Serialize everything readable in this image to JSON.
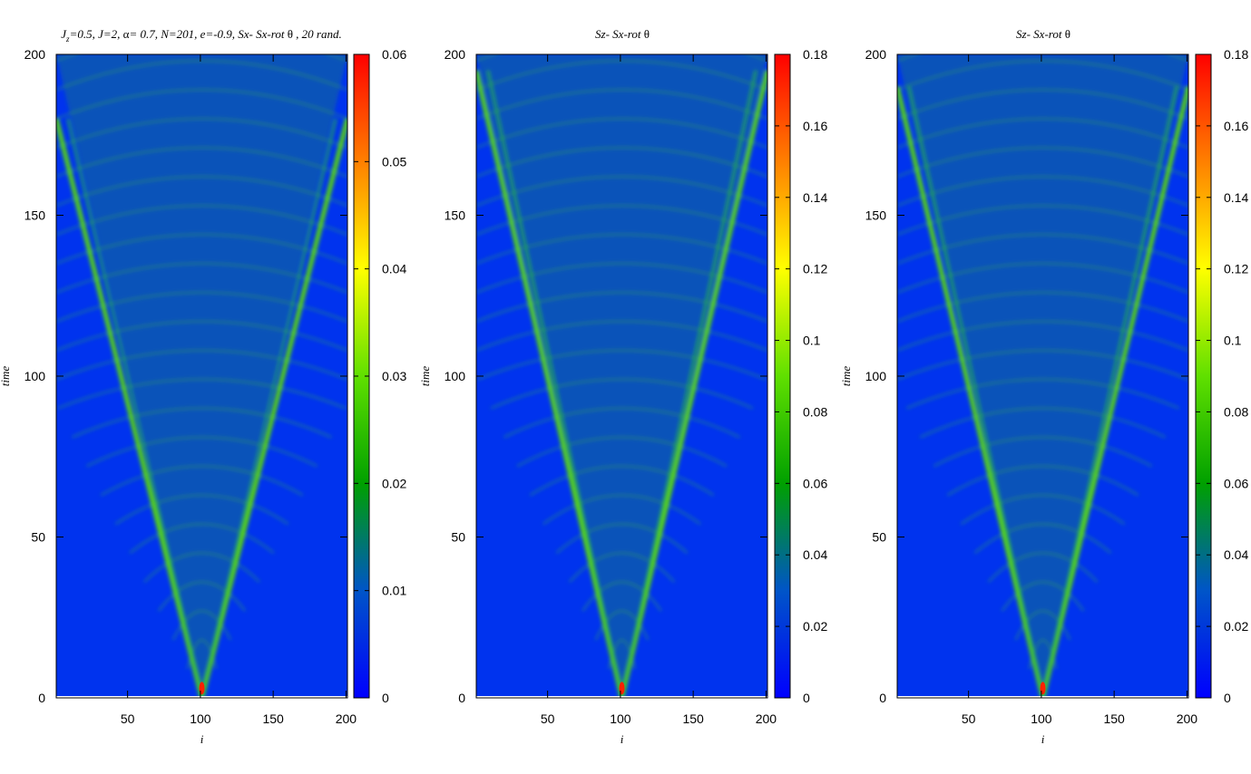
{
  "chart_data": [
    {
      "type": "heatmap",
      "title": {
        "parts": [
          {
            "t": "J",
            "up": false
          },
          {
            "t": "z",
            "sub": true
          },
          {
            "t": "=0.5,  J=2, ",
            "up": false
          },
          {
            "t": "α",
            "up": true
          },
          {
            "t": "= 0.7,   N=201,  e=-0.9, Sx- Sx-rot ",
            "up": false
          },
          {
            "t": "θ",
            "up": true
          },
          {
            "t": " , 20 rand.",
            "up": false
          }
        ]
      },
      "xlabel": "i",
      "ylabel": "time",
      "x_ticks": [
        "50",
        "100",
        "150",
        "200"
      ],
      "x_tick_values": [
        50,
        100,
        150,
        200
      ],
      "xlim": [
        1,
        201
      ],
      "y_ticks": [
        "0",
        "50",
        "100",
        "150",
        "200"
      ],
      "y_tick_values": [
        0,
        50,
        100,
        150,
        200
      ],
      "ylim": [
        0,
        200
      ],
      "colorbar": {
        "min": 0,
        "max": 0.06,
        "ticks": [
          "0",
          "0.01",
          "0.02",
          "0.03",
          "0.04",
          "0.05",
          "0.06"
        ],
        "tick_values": [
          0,
          0.01,
          0.02,
          0.03,
          0.04,
          0.05,
          0.06
        ]
      },
      "data_description_values": {
        "center_site": 101,
        "front_velocity": 0.55,
        "front_reaches_edge_at_time": 180,
        "peak_value": 0.06
      }
    },
    {
      "type": "heatmap",
      "title": {
        "parts": [
          {
            "t": "Sz- Sx-rot ",
            "up": false
          },
          {
            "t": "θ",
            "up": true
          }
        ]
      },
      "xlabel": "i",
      "ylabel": "time",
      "x_ticks": [
        "50",
        "100",
        "150",
        "200"
      ],
      "x_tick_values": [
        50,
        100,
        150,
        200
      ],
      "xlim": [
        1,
        201
      ],
      "y_ticks": [
        "0",
        "50",
        "100",
        "150",
        "200"
      ],
      "y_tick_values": [
        0,
        50,
        100,
        150,
        200
      ],
      "ylim": [
        0,
        200
      ],
      "colorbar": {
        "min": 0,
        "max": 0.18,
        "ticks": [
          "0",
          "0.02",
          "0.04",
          "0.06",
          "0.08",
          "0.1",
          "0.12",
          "0.14",
          "0.16",
          "0.18"
        ],
        "tick_values": [
          0,
          0.02,
          0.04,
          0.06,
          0.08,
          0.1,
          0.12,
          0.14,
          0.16,
          0.18
        ]
      },
      "data_description_values": {
        "center_site": 101,
        "front_velocity": 0.5,
        "front_reaches_edge_at_time": 195,
        "peak_value": 0.18
      }
    },
    {
      "type": "heatmap",
      "title": {
        "parts": [
          {
            "t": "Sz- Sx-rot ",
            "up": false
          },
          {
            "t": "θ",
            "up": true
          }
        ]
      },
      "xlabel": "i",
      "ylabel": "time",
      "x_ticks": [
        "50",
        "100",
        "150",
        "200"
      ],
      "x_tick_values": [
        50,
        100,
        150,
        200
      ],
      "xlim": [
        1,
        201
      ],
      "y_ticks": [
        "0",
        "50",
        "100",
        "150",
        "200"
      ],
      "y_tick_values": [
        0,
        50,
        100,
        150,
        200
      ],
      "ylim": [
        0,
        200
      ],
      "colorbar": {
        "min": 0,
        "max": 0.18,
        "ticks": [
          "0",
          "0.02",
          "0.04",
          "0.06",
          "0.08",
          "0.1",
          "0.12",
          "0.14",
          "0.16",
          "0.18"
        ],
        "tick_values": [
          0,
          0.02,
          0.04,
          0.06,
          0.08,
          0.1,
          0.12,
          0.14,
          0.16,
          0.18
        ]
      },
      "data_description_values": {
        "center_site": 101,
        "front_velocity": 0.52,
        "front_reaches_edge_at_time": 190,
        "peak_value": 0.18
      }
    }
  ],
  "colors": {
    "colormap": [
      "#0000ff",
      "#0055c8",
      "#00a000",
      "#60e000",
      "#ffff00",
      "#ff8000",
      "#ff0000"
    ],
    "background": "#0033ee"
  }
}
